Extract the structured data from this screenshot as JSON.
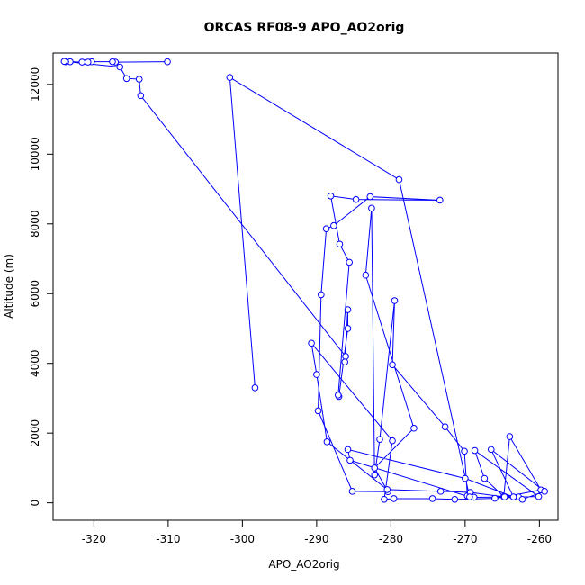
{
  "chart_data": {
    "type": "line",
    "title": "ORCAS RF08-9 APO_AO2orig",
    "xlabel": "APO_AO2orig",
    "ylabel": "Altitude (m)",
    "xlim": [
      -325.5,
      -257.5
    ],
    "ylim": [
      -500,
      12900
    ],
    "xticks": [
      -320,
      -310,
      -300,
      -290,
      -280,
      -270,
      -260
    ],
    "yticks": [
      0,
      2000,
      4000,
      6000,
      8000,
      10000,
      12000
    ],
    "grid": false,
    "marker": "open-circle",
    "series": [
      {
        "color": "#0000ff",
        "points": [
          [
            -310.1,
            12650
          ],
          [
            -317.1,
            12640
          ],
          [
            -317.5,
            12650
          ],
          [
            -320.3,
            12650
          ],
          [
            -320.8,
            12640
          ],
          [
            -321.6,
            12640
          ],
          [
            -323.2,
            12650
          ],
          [
            -323.8,
            12650
          ],
          [
            -324.0,
            12660
          ],
          [
            -316.5,
            12500
          ],
          [
            -315.6,
            12170
          ],
          [
            -313.9,
            12150
          ],
          [
            -313.7,
            11680
          ],
          [
            -286.1,
            4200
          ],
          [
            -286.2,
            4040
          ],
          [
            -285.8,
            5540
          ],
          [
            -285.8,
            5000
          ],
          [
            -287.0,
            3050
          ],
          [
            -287.1,
            3090
          ],
          [
            -285.6,
            6900
          ],
          [
            -286.9,
            7420
          ],
          [
            -288.1,
            8800
          ],
          [
            -284.7,
            8700
          ],
          [
            -273.4,
            8680
          ],
          [
            -282.8,
            8780
          ],
          [
            -287.7,
            7950
          ],
          [
            -288.7,
            7860
          ],
          [
            -289.4,
            5970
          ],
          [
            -289.8,
            2640
          ],
          [
            -285.2,
            330
          ],
          [
            -280.4,
            320
          ],
          [
            -282.2,
            1000
          ],
          [
            -276.9,
            2140
          ],
          [
            -283.4,
            6530
          ],
          [
            -282.6,
            8450
          ],
          [
            -282.2,
            800
          ],
          [
            -281.5,
            1820
          ],
          [
            -279.5,
            5800
          ],
          [
            -279.8,
            3960
          ],
          [
            -272.7,
            2180
          ],
          [
            -270.1,
            1480
          ],
          [
            -269.7,
            200
          ],
          [
            -268.8,
            160
          ],
          [
            -262.8,
            170
          ],
          [
            -260.1,
            180
          ],
          [
            -268.7,
            1500
          ],
          [
            -267.4,
            700
          ],
          [
            -264.8,
            180
          ],
          [
            -264.0,
            1900
          ],
          [
            -259.8,
            370
          ],
          [
            -264.7,
            170
          ],
          [
            -266.0,
            130
          ],
          [
            -271.4,
            100
          ],
          [
            -274.4,
            120
          ],
          [
            -279.6,
            120
          ],
          [
            -280.9,
            100
          ],
          [
            -279.8,
            1780
          ],
          [
            -290.7,
            4580
          ],
          [
            -290.0,
            3680
          ],
          [
            -288.6,
            1750
          ],
          [
            -280.5,
            380
          ],
          [
            -273.3,
            330
          ],
          [
            -269.3,
            300
          ],
          [
            -262.3,
            100
          ],
          [
            -259.3,
            330
          ],
          [
            -266.5,
            1530
          ],
          [
            -263.5,
            170
          ],
          [
            -270.0,
            700
          ],
          [
            -285.8,
            1530
          ],
          [
            -285.5,
            1220
          ],
          [
            -269.4,
            170
          ],
          [
            -278.9,
            9270
          ],
          [
            -301.7,
            12200
          ],
          [
            -298.3,
            3300
          ]
        ]
      }
    ]
  }
}
